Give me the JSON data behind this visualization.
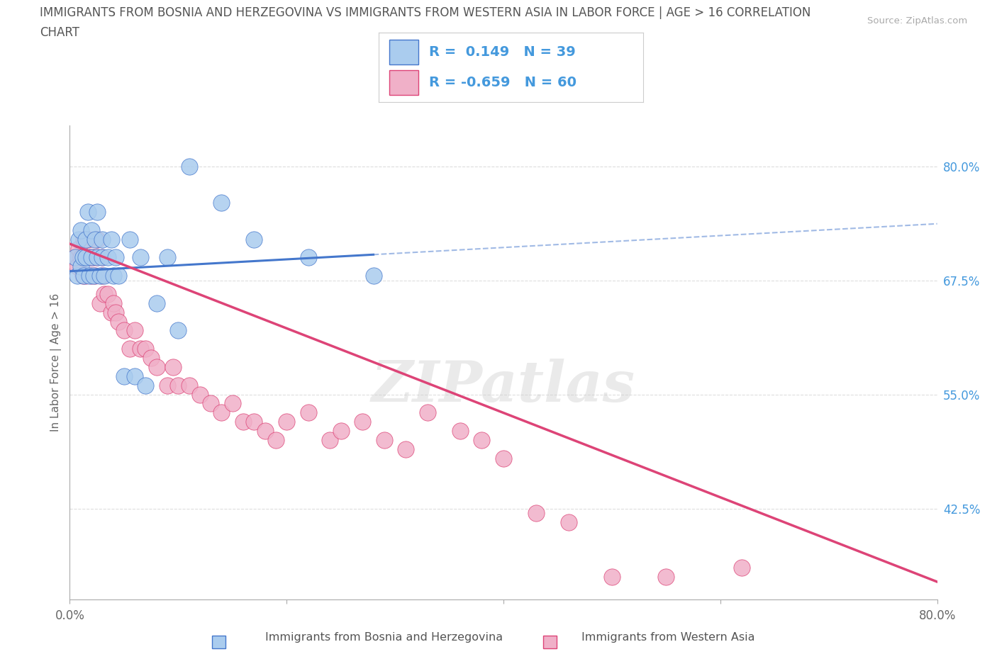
{
  "title_line1": "IMMIGRANTS FROM BOSNIA AND HERZEGOVINA VS IMMIGRANTS FROM WESTERN ASIA IN LABOR FORCE | AGE > 16 CORRELATION",
  "title_line2": "CHART",
  "source_text": "Source: ZipAtlas.com",
  "ylabel": "In Labor Force | Age > 16",
  "xlim": [
    0.0,
    0.8
  ],
  "ylim": [
    0.325,
    0.845
  ],
  "yticks": [
    0.425,
    0.55,
    0.675,
    0.8
  ],
  "ytick_labels": [
    "42.5%",
    "55.0%",
    "67.5%",
    "80.0%"
  ],
  "xticks": [
    0.0,
    0.2,
    0.4,
    0.6,
    0.8
  ],
  "xtick_labels": [
    "0.0%",
    "",
    "",
    "",
    "80.0%"
  ],
  "watermark": "ZIPatlas",
  "legend_R1": "R =  0.149",
  "legend_N1": "N = 39",
  "legend_R2": "R = -0.659",
  "legend_N2": "N = 60",
  "color_bosnia": "#aaccee",
  "color_western": "#f0b0c8",
  "line_color_bosnia": "#4477cc",
  "line_color_western": "#dd4477",
  "text_color_blue": "#4499dd",
  "background_color": "#ffffff",
  "label_bosnia": "Immigrants from Bosnia and Herzegovina",
  "label_western": "Immigrants from Western Asia",
  "bosnia_x": [
    0.005,
    0.007,
    0.008,
    0.01,
    0.01,
    0.012,
    0.013,
    0.015,
    0.015,
    0.017,
    0.018,
    0.02,
    0.02,
    0.022,
    0.023,
    0.025,
    0.025,
    0.028,
    0.03,
    0.03,
    0.032,
    0.035,
    0.038,
    0.04,
    0.042,
    0.045,
    0.05,
    0.055,
    0.06,
    0.065,
    0.07,
    0.08,
    0.09,
    0.1,
    0.11,
    0.14,
    0.17,
    0.22,
    0.28
  ],
  "bosnia_y": [
    0.7,
    0.68,
    0.72,
    0.69,
    0.73,
    0.7,
    0.68,
    0.72,
    0.7,
    0.75,
    0.68,
    0.73,
    0.7,
    0.68,
    0.72,
    0.7,
    0.75,
    0.68,
    0.72,
    0.7,
    0.68,
    0.7,
    0.72,
    0.68,
    0.7,
    0.68,
    0.57,
    0.72,
    0.57,
    0.7,
    0.56,
    0.65,
    0.7,
    0.62,
    0.8,
    0.76,
    0.72,
    0.7,
    0.68
  ],
  "western_x": [
    0.005,
    0.007,
    0.008,
    0.01,
    0.012,
    0.013,
    0.015,
    0.015,
    0.017,
    0.018,
    0.02,
    0.02,
    0.022,
    0.023,
    0.025,
    0.025,
    0.028,
    0.03,
    0.03,
    0.032,
    0.035,
    0.038,
    0.04,
    0.042,
    0.045,
    0.05,
    0.055,
    0.06,
    0.065,
    0.07,
    0.075,
    0.08,
    0.09,
    0.095,
    0.1,
    0.11,
    0.12,
    0.13,
    0.14,
    0.15,
    0.16,
    0.17,
    0.18,
    0.19,
    0.2,
    0.22,
    0.24,
    0.25,
    0.27,
    0.29,
    0.31,
    0.33,
    0.36,
    0.38,
    0.4,
    0.43,
    0.46,
    0.5,
    0.55,
    0.62
  ],
  "western_y": [
    0.7,
    0.69,
    0.71,
    0.7,
    0.68,
    0.72,
    0.7,
    0.68,
    0.72,
    0.7,
    0.7,
    0.68,
    0.7,
    0.68,
    0.72,
    0.7,
    0.65,
    0.68,
    0.7,
    0.66,
    0.66,
    0.64,
    0.65,
    0.64,
    0.63,
    0.62,
    0.6,
    0.62,
    0.6,
    0.6,
    0.59,
    0.58,
    0.56,
    0.58,
    0.56,
    0.56,
    0.55,
    0.54,
    0.53,
    0.54,
    0.52,
    0.52,
    0.51,
    0.5,
    0.52,
    0.53,
    0.5,
    0.51,
    0.52,
    0.5,
    0.49,
    0.53,
    0.51,
    0.5,
    0.48,
    0.42,
    0.41,
    0.35,
    0.35,
    0.36
  ]
}
